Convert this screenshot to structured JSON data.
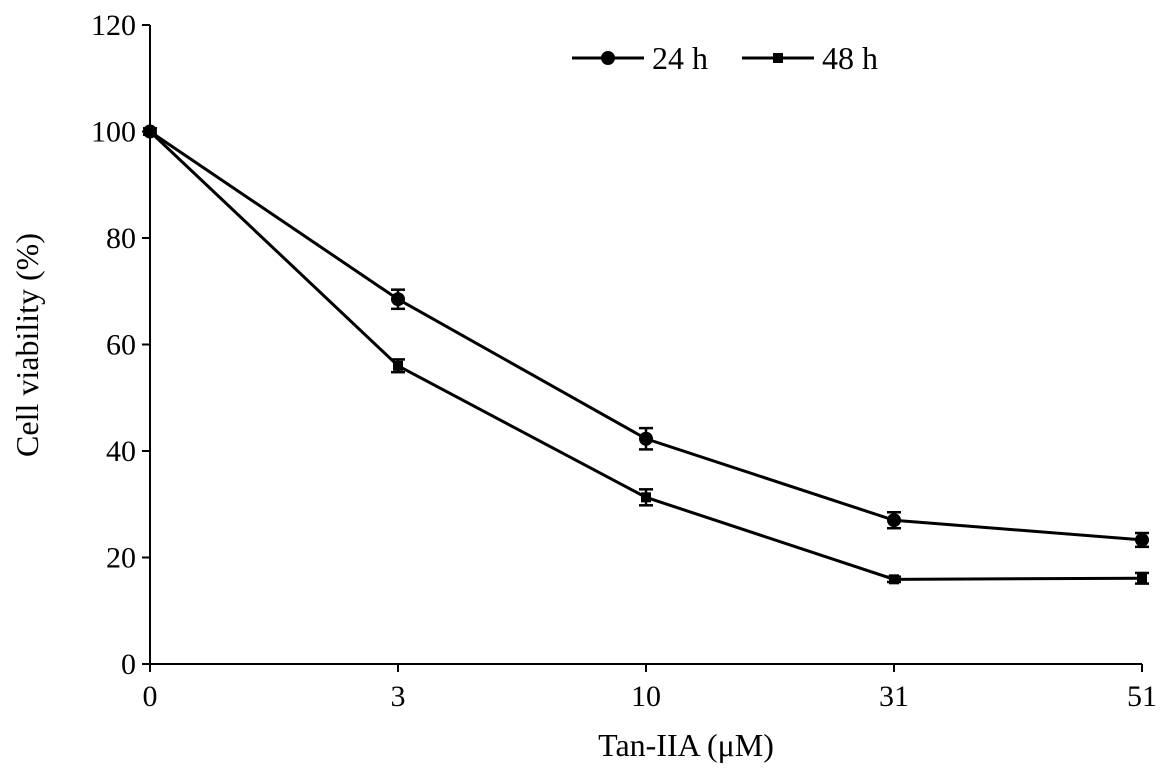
{
  "chart_data": {
    "type": "line",
    "categories": [
      "0",
      "3",
      "10",
      "31",
      "51"
    ],
    "series": [
      {
        "name": "24 h",
        "marker": "circle",
        "values": [
          100,
          68.5,
          42.3,
          27.0,
          23.3
        ],
        "errors": [
          0.6,
          1.8,
          2.0,
          1.5,
          1.3
        ]
      },
      {
        "name": "48 h",
        "marker": "square",
        "values": [
          100,
          56.0,
          31.3,
          15.9,
          16.1
        ],
        "errors": [
          0.6,
          1.2,
          1.5,
          0.5,
          1.0
        ]
      }
    ],
    "xlabel": "Tan-IIA (μM)",
    "ylabel": "Cell viability (%)",
    "ylim": [
      0,
      120
    ],
    "yticks": [
      "0",
      "20",
      "40",
      "60",
      "80",
      "100",
      "120"
    ],
    "grid": false,
    "legend": "top-center",
    "colors": {
      "line": "#000000",
      "background": "#ffffff"
    }
  }
}
